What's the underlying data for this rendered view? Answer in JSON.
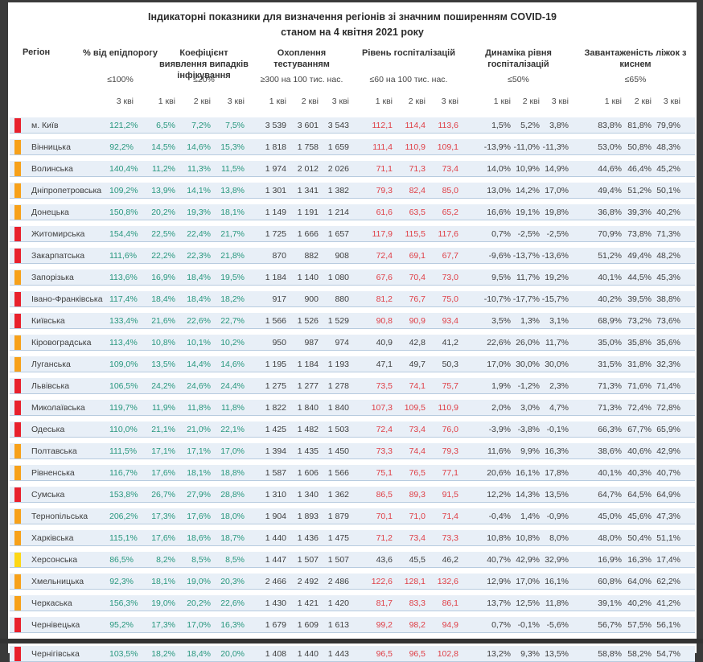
{
  "title": {
    "line1": "Індикаторні показники для визначення регіонів зі значним поширенням COVID-19",
    "line2": "станом на 4 квітня 2021 року"
  },
  "columns": {
    "region": "Регіон",
    "groups": [
      {
        "label": "% від епідпорогу",
        "threshold": "≤100%",
        "subcols": [
          "3 кві"
        ]
      },
      {
        "label": "Коефіцієнт виявлення випадків інфікування",
        "threshold": "≤20%",
        "subcols": [
          "1 кві",
          "2 кві",
          "3 кві"
        ]
      },
      {
        "label": "Охоплення тестуванням",
        "threshold": "≥300 на 100 тис. нас.",
        "subcols": [
          "1 кві",
          "2 кві",
          "3 кві"
        ]
      },
      {
        "label": "Рівень госпіталізацій",
        "threshold": "≤60 на 100 тис. нас.",
        "subcols": [
          "1 кві",
          "2 кві",
          "3 кві"
        ]
      },
      {
        "label": "Динаміка рівня госпіталізацій",
        "threshold": "≤50%",
        "subcols": [
          "1 кві",
          "2 кві",
          "3 кві"
        ]
      },
      {
        "label": "Завантаженість ліжок з киснем",
        "threshold": "≤65%",
        "subcols": [
          "1 кві",
          "2 кві",
          "3 кві"
        ]
      }
    ]
  },
  "colors": {
    "marker_red": "#e8202c",
    "marker_orange": "#f7a11a",
    "marker_yellow": "#fdd716",
    "value_green": "#27977d",
    "value_red": "#df3e45",
    "value_dark": "#3e3e3e",
    "row_background": "#e8eff7"
  },
  "rows": [
    {
      "region": "м. Київ",
      "marker": "red",
      "epid": "121,2%",
      "coef": [
        "6,5%",
        "7,2%",
        "7,5%"
      ],
      "testing": [
        "3 539",
        "3 601",
        "3 543"
      ],
      "hosp": [
        "112,1",
        "114,4",
        "113,6"
      ],
      "hosp_alert": true,
      "dynamics": [
        "1,5%",
        "5,2%",
        "3,8%"
      ],
      "load": [
        "83,8%",
        "81,8%",
        "79,9%"
      ]
    },
    {
      "region": "Вінницька",
      "marker": "orange",
      "epid": "92,2%",
      "coef": [
        "14,5%",
        "14,6%",
        "15,3%"
      ],
      "testing": [
        "1 818",
        "1 758",
        "1 659"
      ],
      "hosp": [
        "111,4",
        "110,9",
        "109,1"
      ],
      "hosp_alert": true,
      "dynamics": [
        "-13,9%",
        "-11,0%",
        "-11,3%"
      ],
      "load": [
        "53,0%",
        "50,8%",
        "48,3%"
      ]
    },
    {
      "region": "Волинська",
      "marker": "orange",
      "epid": "140,4%",
      "coef": [
        "11,2%",
        "11,3%",
        "11,5%"
      ],
      "testing": [
        "1 974",
        "2 012",
        "2 026"
      ],
      "hosp": [
        "71,1",
        "71,3",
        "73,4"
      ],
      "hosp_alert": true,
      "dynamics": [
        "14,0%",
        "10,9%",
        "14,9%"
      ],
      "load": [
        "44,6%",
        "46,4%",
        "45,2%"
      ]
    },
    {
      "region": "Дніпропетровська",
      "marker": "orange",
      "epid": "109,2%",
      "coef": [
        "13,9%",
        "14,1%",
        "13,8%"
      ],
      "testing": [
        "1 301",
        "1 341",
        "1 382"
      ],
      "hosp": [
        "79,3",
        "82,4",
        "85,0"
      ],
      "hosp_alert": true,
      "dynamics": [
        "13,0%",
        "14,2%",
        "17,0%"
      ],
      "load": [
        "49,4%",
        "51,2%",
        "50,1%"
      ]
    },
    {
      "region": "Донецька",
      "marker": "orange",
      "epid": "150,8%",
      "coef": [
        "20,2%",
        "19,3%",
        "18,1%"
      ],
      "testing": [
        "1 149",
        "1 191",
        "1 214"
      ],
      "hosp": [
        "61,6",
        "63,5",
        "65,2"
      ],
      "hosp_alert": true,
      "dynamics": [
        "16,6%",
        "19,1%",
        "19,8%"
      ],
      "load": [
        "36,8%",
        "39,3%",
        "40,2%"
      ]
    },
    {
      "region": "Житомирська",
      "marker": "red",
      "epid": "154,4%",
      "coef": [
        "22,5%",
        "22,4%",
        "21,7%"
      ],
      "testing": [
        "1 725",
        "1 666",
        "1 657"
      ],
      "hosp": [
        "117,9",
        "115,5",
        "117,6"
      ],
      "hosp_alert": true,
      "dynamics": [
        "0,7%",
        "-2,5%",
        "-2,5%"
      ],
      "load": [
        "70,9%",
        "73,8%",
        "71,3%"
      ]
    },
    {
      "region": "Закарпатська",
      "marker": "red",
      "epid": "111,6%",
      "coef": [
        "22,2%",
        "22,3%",
        "21,8%"
      ],
      "testing": [
        "870",
        "882",
        "908"
      ],
      "hosp": [
        "72,4",
        "69,1",
        "67,7"
      ],
      "hosp_alert": true,
      "dynamics": [
        "-9,6%",
        "-13,7%",
        "-13,6%"
      ],
      "load": [
        "51,2%",
        "49,4%",
        "48,2%"
      ]
    },
    {
      "region": "Запорізька",
      "marker": "orange",
      "epid": "113,6%",
      "coef": [
        "16,9%",
        "18,4%",
        "19,5%"
      ],
      "testing": [
        "1 184",
        "1 140",
        "1 080"
      ],
      "hosp": [
        "67,6",
        "70,4",
        "73,0"
      ],
      "hosp_alert": true,
      "dynamics": [
        "9,5%",
        "11,7%",
        "19,2%"
      ],
      "load": [
        "40,1%",
        "44,5%",
        "45,3%"
      ]
    },
    {
      "region": "Івано-Франківська",
      "marker": "red",
      "epid": "117,4%",
      "coef": [
        "18,4%",
        "18,4%",
        "18,2%"
      ],
      "testing": [
        "917",
        "900",
        "880"
      ],
      "hosp": [
        "81,2",
        "76,7",
        "75,0"
      ],
      "hosp_alert": true,
      "dynamics": [
        "-10,7%",
        "-17,7%",
        "-15,7%"
      ],
      "load": [
        "40,2%",
        "39,5%",
        "38,8%"
      ]
    },
    {
      "region": "Київська",
      "marker": "red",
      "epid": "133,4%",
      "coef": [
        "21,6%",
        "22,6%",
        "22,7%"
      ],
      "testing": [
        "1 566",
        "1 526",
        "1 529"
      ],
      "hosp": [
        "90,8",
        "90,9",
        "93,4"
      ],
      "hosp_alert": true,
      "dynamics": [
        "3,5%",
        "1,3%",
        "3,1%"
      ],
      "load": [
        "68,9%",
        "73,2%",
        "73,6%"
      ]
    },
    {
      "region": "Кіровоградська",
      "marker": "orange",
      "epid": "113,4%",
      "coef": [
        "10,8%",
        "10,1%",
        "10,2%"
      ],
      "testing": [
        "950",
        "987",
        "974"
      ],
      "hosp": [
        "40,9",
        "42,8",
        "41,2"
      ],
      "hosp_alert": false,
      "dynamics": [
        "22,6%",
        "26,0%",
        "11,7%"
      ],
      "load": [
        "35,0%",
        "35,8%",
        "35,6%"
      ]
    },
    {
      "region": "Луганська",
      "marker": "orange",
      "epid": "109,0%",
      "coef": [
        "13,5%",
        "14,4%",
        "14,6%"
      ],
      "testing": [
        "1 195",
        "1 184",
        "1 193"
      ],
      "hosp": [
        "47,1",
        "49,7",
        "50,3"
      ],
      "hosp_alert": false,
      "dynamics": [
        "17,0%",
        "30,0%",
        "30,0%"
      ],
      "load": [
        "31,5%",
        "31,8%",
        "32,3%"
      ]
    },
    {
      "region": "Львівська",
      "marker": "red",
      "epid": "106,5%",
      "coef": [
        "24,2%",
        "24,6%",
        "24,4%"
      ],
      "testing": [
        "1 275",
        "1 277",
        "1 278"
      ],
      "hosp": [
        "73,5",
        "74,1",
        "75,7"
      ],
      "hosp_alert": true,
      "dynamics": [
        "1,9%",
        "-1,2%",
        "2,3%"
      ],
      "load": [
        "71,3%",
        "71,6%",
        "71,4%"
      ]
    },
    {
      "region": "Миколаївська",
      "marker": "red",
      "epid": "119,7%",
      "coef": [
        "11,9%",
        "11,8%",
        "11,8%"
      ],
      "testing": [
        "1 822",
        "1 840",
        "1 840"
      ],
      "hosp": [
        "107,3",
        "109,5",
        "110,9"
      ],
      "hosp_alert": true,
      "dynamics": [
        "2,0%",
        "3,0%",
        "4,7%"
      ],
      "load": [
        "71,3%",
        "72,4%",
        "72,8%"
      ]
    },
    {
      "region": "Одеська",
      "marker": "red",
      "epid": "110,0%",
      "coef": [
        "21,1%",
        "21,0%",
        "22,1%"
      ],
      "testing": [
        "1 425",
        "1 482",
        "1 503"
      ],
      "hosp": [
        "72,4",
        "73,4",
        "76,0"
      ],
      "hosp_alert": true,
      "dynamics": [
        "-3,9%",
        "-3,8%",
        "-0,1%"
      ],
      "load": [
        "66,3%",
        "67,7%",
        "65,9%"
      ]
    },
    {
      "region": "Полтавська",
      "marker": "orange",
      "epid": "111,5%",
      "coef": [
        "17,1%",
        "17,1%",
        "17,0%"
      ],
      "testing": [
        "1 394",
        "1 435",
        "1 450"
      ],
      "hosp": [
        "73,3",
        "74,4",
        "79,3"
      ],
      "hosp_alert": true,
      "dynamics": [
        "11,6%",
        "9,9%",
        "16,3%"
      ],
      "load": [
        "38,6%",
        "40,6%",
        "42,9%"
      ]
    },
    {
      "region": "Рівненська",
      "marker": "orange",
      "epid": "116,7%",
      "coef": [
        "17,6%",
        "18,1%",
        "18,8%"
      ],
      "testing": [
        "1 587",
        "1 606",
        "1 566"
      ],
      "hosp": [
        "75,1",
        "76,5",
        "77,1"
      ],
      "hosp_alert": true,
      "dynamics": [
        "20,6%",
        "16,1%",
        "17,8%"
      ],
      "load": [
        "40,1%",
        "40,3%",
        "40,7%"
      ]
    },
    {
      "region": "Сумська",
      "marker": "red",
      "epid": "153,8%",
      "coef": [
        "26,7%",
        "27,9%",
        "28,8%"
      ],
      "testing": [
        "1 310",
        "1 340",
        "1 362"
      ],
      "hosp": [
        "86,5",
        "89,3",
        "91,5"
      ],
      "hosp_alert": true,
      "dynamics": [
        "12,2%",
        "14,3%",
        "13,5%"
      ],
      "load": [
        "64,7%",
        "64,5%",
        "64,9%"
      ]
    },
    {
      "region": "Тернопільська",
      "marker": "orange",
      "epid": "206,2%",
      "coef": [
        "17,3%",
        "17,6%",
        "18,0%"
      ],
      "testing": [
        "1 904",
        "1 893",
        "1 879"
      ],
      "hosp": [
        "70,1",
        "71,0",
        "71,4"
      ],
      "hosp_alert": true,
      "dynamics": [
        "-0,4%",
        "1,4%",
        "-0,9%"
      ],
      "load": [
        "45,0%",
        "45,6%",
        "47,3%"
      ]
    },
    {
      "region": "Харківська",
      "marker": "orange",
      "epid": "115,1%",
      "coef": [
        "17,6%",
        "18,6%",
        "18,7%"
      ],
      "testing": [
        "1 440",
        "1 436",
        "1 475"
      ],
      "hosp": [
        "71,2",
        "73,4",
        "73,3"
      ],
      "hosp_alert": true,
      "dynamics": [
        "10,8%",
        "10,8%",
        "8,0%"
      ],
      "load": [
        "48,0%",
        "50,4%",
        "51,1%"
      ]
    },
    {
      "region": "Херсонська",
      "marker": "yellow",
      "epid": "86,5%",
      "coef": [
        "8,2%",
        "8,5%",
        "8,5%"
      ],
      "testing": [
        "1 447",
        "1 507",
        "1 507"
      ],
      "hosp": [
        "43,6",
        "45,5",
        "46,2"
      ],
      "hosp_alert": false,
      "dynamics": [
        "40,7%",
        "42,9%",
        "32,9%"
      ],
      "load": [
        "16,9%",
        "16,3%",
        "17,4%"
      ]
    },
    {
      "region": "Хмельницька",
      "marker": "orange",
      "epid": "92,3%",
      "coef": [
        "18,1%",
        "19,0%",
        "20,3%"
      ],
      "testing": [
        "2 466",
        "2 492",
        "2 486"
      ],
      "hosp": [
        "122,6",
        "128,1",
        "132,6"
      ],
      "hosp_alert": true,
      "dynamics": [
        "12,9%",
        "17,0%",
        "16,1%"
      ],
      "load": [
        "60,8%",
        "64,0%",
        "62,2%"
      ]
    },
    {
      "region": "Черкаська",
      "marker": "orange",
      "epid": "156,3%",
      "coef": [
        "19,0%",
        "20,2%",
        "22,6%"
      ],
      "testing": [
        "1 430",
        "1 421",
        "1 420"
      ],
      "hosp": [
        "81,7",
        "83,3",
        "86,1"
      ],
      "hosp_alert": true,
      "dynamics": [
        "13,7%",
        "12,5%",
        "11,8%"
      ],
      "load": [
        "39,1%",
        "40,2%",
        "41,2%"
      ]
    },
    {
      "region": "Чернівецька",
      "marker": "red",
      "epid": "95,2%",
      "coef": [
        "17,3%",
        "17,0%",
        "16,3%"
      ],
      "testing": [
        "1 679",
        "1 609",
        "1 613"
      ],
      "hosp": [
        "99,2",
        "98,2",
        "94,9"
      ],
      "hosp_alert": true,
      "dynamics": [
        "0,7%",
        "-0,1%",
        "-5,6%"
      ],
      "load": [
        "56,7%",
        "57,5%",
        "56,1%"
      ]
    },
    {
      "region": "Чернігівська",
      "marker": "red",
      "epid": "103,5%",
      "coef": [
        "18,2%",
        "18,4%",
        "20,0%"
      ],
      "testing": [
        "1 408",
        "1 440",
        "1 443"
      ],
      "hosp": [
        "96,5",
        "96,5",
        "102,8"
      ],
      "hosp_alert": true,
      "dynamics": [
        "13,2%",
        "9,3%",
        "13,5%"
      ],
      "load": [
        "58,8%",
        "58,2%",
        "54,7%"
      ]
    }
  ]
}
